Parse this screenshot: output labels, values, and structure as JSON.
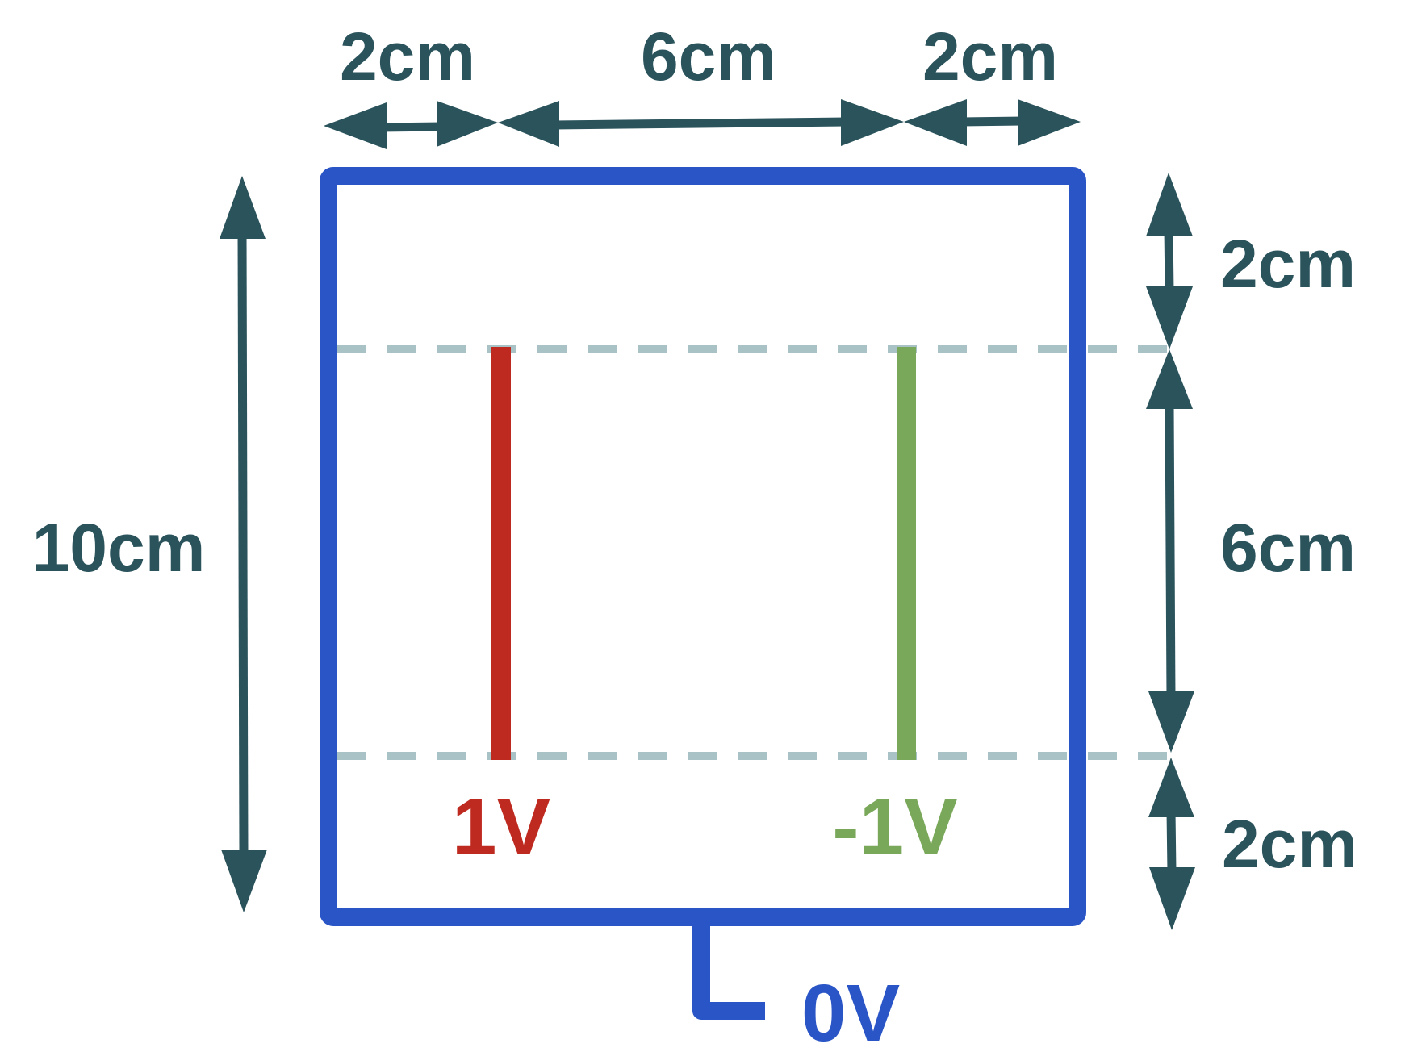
{
  "colors": {
    "dimension": "#2a535c",
    "box": "#2a55c6",
    "positive_plate": "#bf2a20",
    "negative_plate": "#7aa85a",
    "guide_line": "#a9c2c6"
  },
  "top_dimensions": {
    "left": "2cm",
    "middle": "6cm",
    "right": "2cm"
  },
  "left_dimension": "10cm",
  "right_dimensions": {
    "top": "2cm",
    "middle": "6cm",
    "bottom": "2cm"
  },
  "plates": {
    "positive": {
      "label": "1V",
      "voltage": 1
    },
    "negative": {
      "label": "-1V",
      "voltage": -1
    }
  },
  "ground": {
    "label": "0V",
    "voltage": 0
  }
}
